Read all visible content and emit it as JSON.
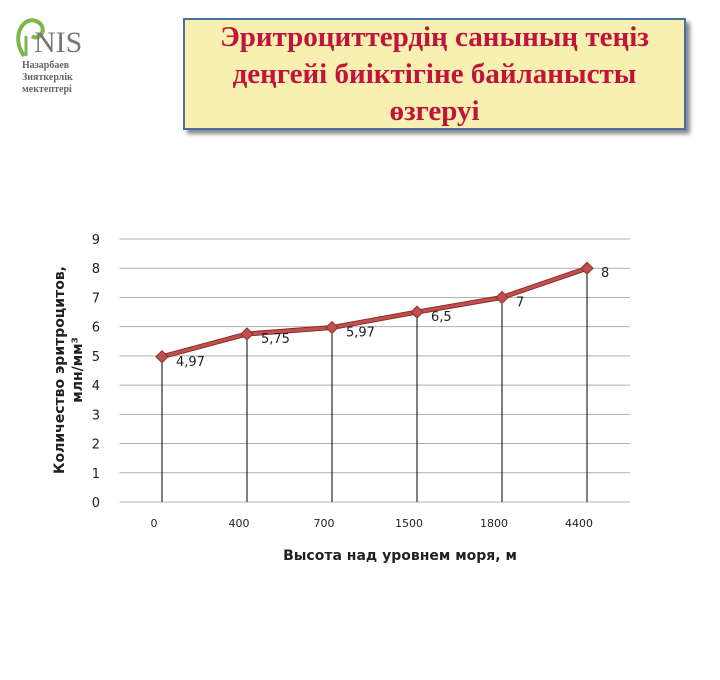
{
  "header": {
    "logo": "NIS",
    "logo_sub": [
      "Назарбаев",
      "Зияткерлік",
      "мектептері"
    ],
    "title": "Эритроциттердің санының теңіз деңгейі биіктігіне байланысты өзгеруі"
  },
  "chart_data": {
    "type": "line",
    "xlabel": "Высота над уровнем моря, м",
    "ylabel": [
      "Количество эритроцитов,",
      "млн/мм³"
    ],
    "categories": [
      "0",
      "400",
      "700",
      "1500",
      "1800",
      "4400"
    ],
    "series": [
      {
        "color": "#c0504d",
        "values": [
          4.97,
          5.75,
          5.97,
          6.5,
          7,
          8
        ],
        "value_labels": [
          "4,97",
          "5,75",
          "5,97",
          "6,5",
          "7",
          "8"
        ]
      }
    ],
    "ylim": [
      0,
      9
    ],
    "yticks": [
      0,
      1,
      2,
      3,
      4,
      5,
      6,
      7,
      8,
      9
    ],
    "grid": true,
    "drop_lines": true
  }
}
